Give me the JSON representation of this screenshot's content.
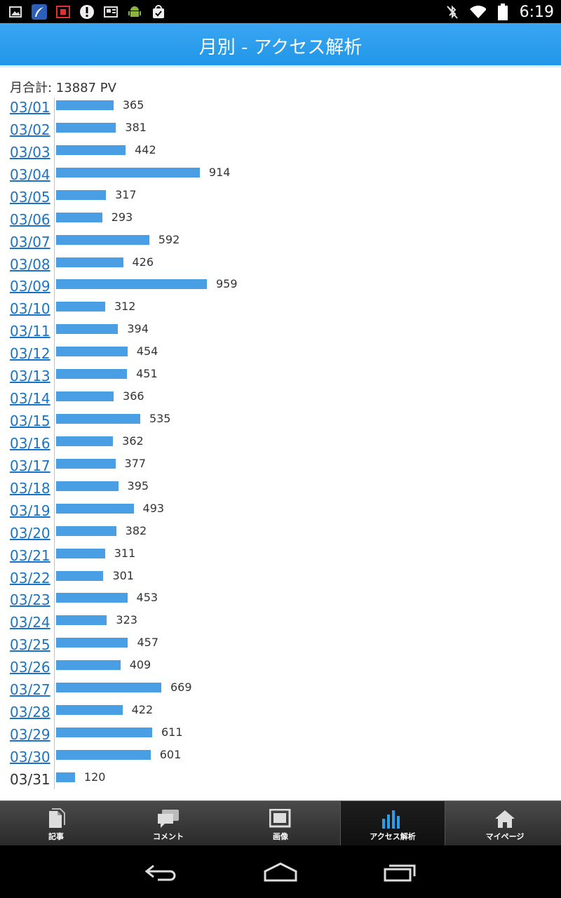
{
  "status_bar": {
    "time": "6:19",
    "left_icons": [
      "gallery-icon",
      "feather-app-icon",
      "film-icon",
      "alert-icon",
      "news-icon",
      "android-icon",
      "shopping-bag-check-icon"
    ],
    "right_icons": [
      "bluetooth-off-icon",
      "wifi-icon",
      "battery-icon"
    ]
  },
  "header": {
    "title": "月別 - アクセス解析"
  },
  "summary": {
    "total_label": "月合計: 13887 PV"
  },
  "colors": {
    "header_blue": "#2a9ded",
    "bar_blue": "#4a9fe4",
    "link_blue": "#1a73c8"
  },
  "chart_data": {
    "type": "bar",
    "orientation": "horizontal",
    "categories": [
      "03/01",
      "03/02",
      "03/03",
      "03/04",
      "03/05",
      "03/06",
      "03/07",
      "03/08",
      "03/09",
      "03/10",
      "03/11",
      "03/12",
      "03/13",
      "03/14",
      "03/15",
      "03/16",
      "03/17",
      "03/18",
      "03/19",
      "03/20",
      "03/21",
      "03/22",
      "03/23",
      "03/24",
      "03/25",
      "03/26",
      "03/27",
      "03/28",
      "03/29",
      "03/30",
      "03/31"
    ],
    "values": [
      365,
      381,
      442,
      914,
      317,
      293,
      592,
      426,
      959,
      312,
      394,
      454,
      451,
      366,
      535,
      362,
      377,
      395,
      493,
      382,
      311,
      301,
      453,
      323,
      457,
      409,
      669,
      422,
      611,
      601,
      120
    ],
    "linked": [
      true,
      true,
      true,
      true,
      true,
      true,
      true,
      true,
      true,
      true,
      true,
      true,
      true,
      true,
      true,
      true,
      true,
      true,
      true,
      true,
      true,
      true,
      true,
      true,
      true,
      true,
      true,
      true,
      true,
      true,
      false
    ],
    "title": "",
    "xlabel": "",
    "ylabel": "",
    "xlim": [
      0,
      959
    ],
    "grid": false,
    "data_labels": true
  },
  "tabs": [
    {
      "label": "記事",
      "icon": "article-icon",
      "active": false
    },
    {
      "label": "コメント",
      "icon": "comment-icon",
      "active": false
    },
    {
      "label": "画像",
      "icon": "image-icon",
      "active": false
    },
    {
      "label": "アクセス解析",
      "icon": "bar-chart-icon",
      "active": true
    },
    {
      "label": "マイページ",
      "icon": "home-icon",
      "active": false
    }
  ],
  "nav_bar": {
    "buttons": [
      "back-icon",
      "home-icon",
      "recent-apps-icon"
    ]
  }
}
